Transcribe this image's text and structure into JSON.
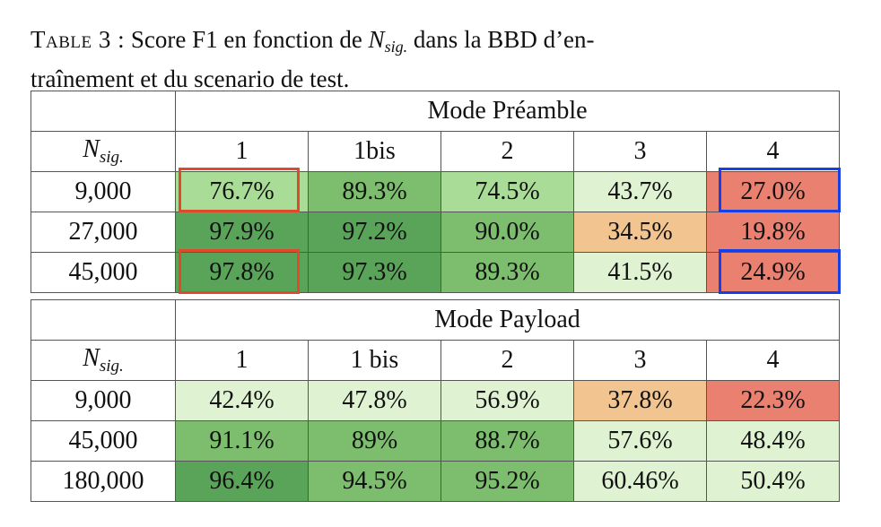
{
  "caption": {
    "label": "Table 3 :",
    "text_before": "Score F1 en fonction de ",
    "symbol": "N",
    "symbol_sub": "sig.",
    "text_after_line1": " dans la BBD d’en-",
    "line2": "traînement et du scenario de test."
  },
  "colors": {
    "dark_green": "#5aa45a",
    "mid_green": "#7cbd6e",
    "light_green": "#a9dc97",
    "pale_green": "#dff3d3",
    "orange": "#f2c48f",
    "red": "#ea8070",
    "highlight_red": "#e04a2a",
    "highlight_blue": "#1540e6"
  },
  "tables": [
    {
      "mode_title": "Mode Préamble",
      "row_header_symbol": "N",
      "row_header_sub": "sig.",
      "columns": [
        "1",
        "1bis",
        "2",
        "3",
        "4"
      ],
      "rows": [
        {
          "label": "9,000",
          "cells": [
            {
              "value": "76.7%",
              "color": "#a9dc97"
            },
            {
              "value": "89.3%",
              "color": "#7cbd6e"
            },
            {
              "value": "74.5%",
              "color": "#a9dc97"
            },
            {
              "value": "43.7%",
              "color": "#dff3d3"
            },
            {
              "value": "27.0%",
              "color": "#ea8070"
            }
          ]
        },
        {
          "label": "27,000",
          "cells": [
            {
              "value": "97.9%",
              "color": "#5aa45a"
            },
            {
              "value": "97.2%",
              "color": "#5aa45a"
            },
            {
              "value": "90.0%",
              "color": "#7cbd6e"
            },
            {
              "value": "34.5%",
              "color": "#f2c48f"
            },
            {
              "value": "19.8%",
              "color": "#ea8070"
            }
          ]
        },
        {
          "label": "45,000",
          "cells": [
            {
              "value": "97.8%",
              "color": "#5aa45a"
            },
            {
              "value": "97.3%",
              "color": "#5aa45a"
            },
            {
              "value": "89.3%",
              "color": "#7cbd6e"
            },
            {
              "value": "41.5%",
              "color": "#dff3d3"
            },
            {
              "value": "24.9%",
              "color": "#ea8070"
            }
          ]
        }
      ]
    },
    {
      "mode_title": "Mode Payload",
      "row_header_symbol": "N",
      "row_header_sub": "sig.",
      "columns": [
        "1",
        "1 bis",
        "2",
        "3",
        "4"
      ],
      "rows": [
        {
          "label": "9,000",
          "cells": [
            {
              "value": "42.4%",
              "color": "#dff3d3"
            },
            {
              "value": "47.8%",
              "color": "#dff3d3"
            },
            {
              "value": "56.9%",
              "color": "#dff3d3"
            },
            {
              "value": "37.8%",
              "color": "#f2c48f"
            },
            {
              "value": "22.3%",
              "color": "#ea8070"
            }
          ]
        },
        {
          "label": "45,000",
          "cells": [
            {
              "value": "91.1%",
              "color": "#7cbd6e"
            },
            {
              "value": "89%",
              "color": "#7cbd6e"
            },
            {
              "value": "88.7%",
              "color": "#7cbd6e"
            },
            {
              "value": "57.6%",
              "color": "#dff3d3"
            },
            {
              "value": "48.4%",
              "color": "#dff3d3"
            }
          ]
        },
        {
          "label": "180,000",
          "cells": [
            {
              "value": "96.4%",
              "color": "#5aa45a"
            },
            {
              "value": "94.5%",
              "color": "#7cbd6e"
            },
            {
              "value": "95.2%",
              "color": "#7cbd6e"
            },
            {
              "value": "60.46%",
              "color": "#dff3d3"
            },
            {
              "value": "50.4%",
              "color": "#dff3d3"
            }
          ]
        }
      ]
    }
  ]
}
